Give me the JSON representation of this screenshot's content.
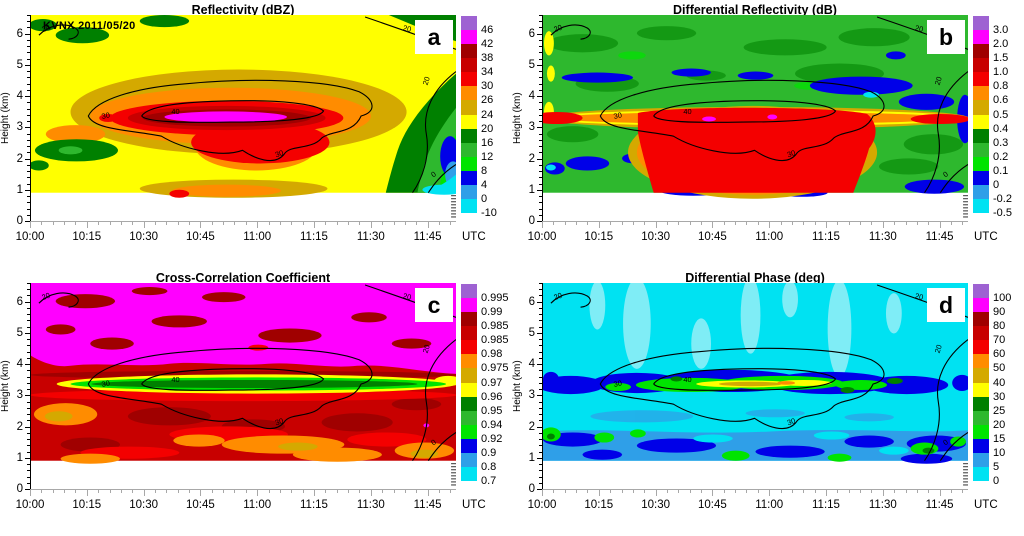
{
  "palette": [
    "#9e62d2",
    "#ff00ff",
    "#a00000",
    "#c80000",
    "#f40000",
    "#ff8c00",
    "#d4a900",
    "#ffff00",
    "#008000",
    "#2eb82e",
    "#00e400",
    "#0000e8",
    "#2f9fe8",
    "#00e2f2"
  ],
  "axes": {
    "ylabel": "Height (km)",
    "yticks": [
      "0",
      "1",
      "2",
      "3",
      "4",
      "5",
      "6"
    ],
    "xticks": [
      "10:00",
      "10:15",
      "10:30",
      "10:45",
      "11:00",
      "11:15",
      "11:30",
      "11:45"
    ],
    "xunit": "UTC"
  },
  "contour_labels": {
    "v0": "0",
    "v20": "20",
    "v30": "30",
    "v40": "40"
  },
  "panels": [
    {
      "letter": "a",
      "title": "Reflectivity (dBZ)",
      "annotation": "KVNX 2011/05/20",
      "colorbar_labels": [
        "46",
        "42",
        "38",
        "34",
        "30",
        "26",
        "24",
        "20",
        "16",
        "12",
        "8",
        "4",
        "0",
        "-10"
      ]
    },
    {
      "letter": "b",
      "title": "Differential Reflectivity (dB)",
      "colorbar_labels": [
        "3.0",
        "2.0",
        "1.5",
        "1.0",
        "0.8",
        "0.6",
        "0.5",
        "0.4",
        "0.3",
        "0.2",
        "0.1",
        "0",
        "-0.2",
        "-0.5"
      ]
    },
    {
      "letter": "c",
      "title": "Cross-Correlation Coefficient",
      "colorbar_labels": [
        "0.995",
        "0.99",
        "0.985",
        "0.985",
        "0.98",
        "0.975",
        "0.97",
        "0.96",
        "0.95",
        "0.94",
        "0.92",
        "0.9",
        "0.8",
        "0.7"
      ]
    },
    {
      "letter": "d",
      "title": "Differential Phase (deg)",
      "colorbar_labels": [
        "100",
        "90",
        "80",
        "70",
        "60",
        "50",
        "40",
        "30",
        "25",
        "20",
        "15",
        "10",
        "5",
        "0"
      ]
    }
  ],
  "chart_data": [
    {
      "type": "heatmap",
      "panel": "a",
      "title": "Reflectivity (dBZ)",
      "annotation": "KVNX 2011/05/20",
      "xlabel": "Time (UTC)",
      "x_ticks": [
        "10:00",
        "10:15",
        "10:30",
        "10:45",
        "11:00",
        "11:15",
        "11:30",
        "11:45"
      ],
      "x_range": [
        "10:00",
        "11:52 (approx)"
      ],
      "ylabel": "Height (km)",
      "y_range": [
        0,
        6.6
      ],
      "y_ticks": [
        0,
        1,
        2,
        3,
        4,
        5,
        6
      ],
      "color_levels_dBZ": [
        -10,
        0,
        4,
        8,
        12,
        16,
        20,
        24,
        26,
        30,
        34,
        38,
        42,
        46
      ],
      "overlay_contours_dBZ": [
        0,
        20,
        30,
        40
      ],
      "features": [
        "Background reflectivity 20-24 dBZ (yellow) over most of the time-height section",
        "High-reflectivity bright band 30-46 dBZ centered near 3-3.5 km from ~10:05 to ~11:20",
        "Core >42 dBZ (magenta) elongated from ~10:30 to ~11:05 at ~3.2 km",
        "30+ dBZ extends downward below 3 km between ~10:30 and 11:10",
        "Reflectivity drops to 16 dBZ and below (green/blue/cyan, down to <0 dBZ) in lower right after ~11:25 below ~3.5 km",
        "16-20 dBZ (dark green) patches upper-left, top-center, top-right corner and left side near 1.5-2 km"
      ]
    },
    {
      "type": "heatmap",
      "panel": "b",
      "title": "Differential Reflectivity (dB)",
      "xlabel": "Time (UTC)",
      "x_ticks": [
        "10:00",
        "10:15",
        "10:30",
        "10:45",
        "11:00",
        "11:15",
        "11:30",
        "11:45"
      ],
      "ylabel": "Height (km)",
      "y_range": [
        0,
        6.6
      ],
      "y_ticks": [
        0,
        1,
        2,
        3,
        4,
        5,
        6
      ],
      "color_levels_dB": [
        -0.5,
        -0.2,
        0,
        0.1,
        0.2,
        0.3,
        0.4,
        0.5,
        0.6,
        0.8,
        1.0,
        1.5,
        2.0,
        3.0
      ],
      "overlay_contours_dBZ": [
        0,
        20,
        30,
        40
      ],
      "features": [
        "Background ZDR 0.1-0.3 dB (green) above the melting layer",
        "Enhanced ZDR layer 0.6-1.5 dB (red) near 3-3.5 km across nearly the full period, fringed by 0.4-0.6 dB (yellow/orange)",
        "Large 0.8-1.5 dB column (dark red) below 3 km between ~10:20 and ~11:15 reaching the lowest levels",
        "Small 2-3 dB (magenta) spots near 3 km around 10:40-10:55",
        "Near-zero / negative ZDR streaks (blue, 0 to -0.2 dB) near 4-5 km, lower-left, bottom and right edge"
      ]
    },
    {
      "type": "heatmap",
      "panel": "c",
      "title": "Cross-Correlation Coefficient",
      "xlabel": "Time (UTC)",
      "x_ticks": [
        "10:00",
        "10:15",
        "10:30",
        "10:45",
        "11:00",
        "11:15",
        "11:30",
        "11:45"
      ],
      "ylabel": "Height (km)",
      "y_range": [
        0,
        6.6
      ],
      "y_ticks": [
        0,
        1,
        2,
        3,
        4,
        5,
        6
      ],
      "color_levels": [
        0.7,
        0.8,
        0.9,
        0.92,
        0.94,
        0.95,
        0.96,
        0.97,
        0.975,
        0.98,
        0.985,
        0.985,
        0.99,
        0.995
      ],
      "overlay_contours_dBZ": [
        0,
        20,
        30,
        40
      ],
      "features": [
        "rhoHV 0.99-0.995 (magenta) above ~3.5 km with 0.985-0.99 (dark red) mottling",
        "Pronounced melting-layer minimum 0.94-0.96 (green band inside yellow 0.96-0.97) near 3-3.5 km from ~10:10 to ~11:30",
        "Below the melting layer rhoHV mostly 0.98-0.985 (red/dark red) with 0.97-0.975 (orange/gold) patches near the bottom and lower-left"
      ]
    },
    {
      "type": "heatmap",
      "panel": "d",
      "title": "Differential Phase (deg)",
      "xlabel": "Time (UTC)",
      "x_ticks": [
        "10:00",
        "10:15",
        "10:30",
        "10:45",
        "11:00",
        "11:15",
        "11:30",
        "11:45"
      ],
      "ylabel": "Height (km)",
      "y_range": [
        0,
        6.6
      ],
      "y_ticks": [
        0,
        1,
        2,
        3,
        4,
        5,
        6
      ],
      "color_levels_deg": [
        0,
        5,
        10,
        15,
        20,
        25,
        30,
        40,
        50,
        60,
        70,
        80,
        90,
        100
      ],
      "overlay_contours_dBZ": [
        0,
        20,
        30,
        40
      ],
      "features": [
        "Background differential phase 0-5 deg (cyan) above ~3.5 km",
        "Band of 10-25 deg (dark blue/green) near 3 km from ~10:15 to ~11:20",
        "Core 30-60 deg (yellow/gold/orange) near 3 km between ~10:35 and ~11:05",
        "5-10 deg (medium blue) layer between ~1 and 2 km with embedded 10-25 deg (dark blue/green) patches"
      ]
    }
  ]
}
